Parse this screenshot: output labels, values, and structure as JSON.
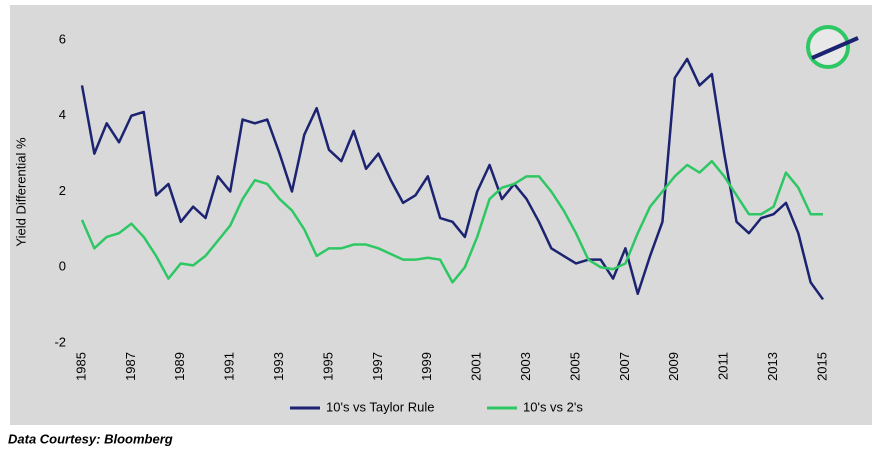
{
  "chart_data": {
    "type": "line",
    "y_label": "Yield Differential %",
    "source": "Data Courtesy: Bloomberg",
    "x": [
      1985,
      1985.5,
      1986,
      1986.5,
      1987,
      1987.5,
      1988,
      1988.5,
      1989,
      1989.5,
      1990,
      1990.5,
      1991,
      1991.5,
      1992,
      1992.5,
      1993,
      1993.5,
      1994,
      1994.5,
      1995,
      1995.5,
      1996,
      1996.5,
      1997,
      1997.5,
      1998,
      1998.5,
      1999,
      1999.5,
      2000,
      2000.5,
      2001,
      2001.5,
      2002,
      2002.5,
      2003,
      2003.5,
      2004,
      2004.5,
      2005,
      2005.5,
      2006,
      2006.5,
      2007,
      2007.5,
      2008,
      2008.5,
      2009,
      2009.5,
      2010,
      2010.5,
      2011,
      2011.5,
      2012,
      2012.5,
      2013,
      2013.5,
      2014,
      2014.5,
      2015
    ],
    "series": [
      {
        "name": "10's vs Taylor Rule",
        "color": "#1c2370",
        "values": [
          4.8,
          3.0,
          3.8,
          3.3,
          4.0,
          4.1,
          1.9,
          2.2,
          1.2,
          1.6,
          1.3,
          2.4,
          2.0,
          3.9,
          3.8,
          3.9,
          3.0,
          2.0,
          3.5,
          4.2,
          3.1,
          2.8,
          3.6,
          2.6,
          3.0,
          2.3,
          1.7,
          1.9,
          2.4,
          1.3,
          1.2,
          0.8,
          2.0,
          2.7,
          1.8,
          2.2,
          1.8,
          1.2,
          0.5,
          0.3,
          0.1,
          0.2,
          0.2,
          -0.3,
          0.5,
          -0.7,
          0.3,
          1.2,
          5.0,
          5.5,
          4.8,
          5.1,
          3.0,
          1.2,
          0.9,
          1.3,
          1.4,
          1.7,
          0.9,
          -0.4,
          -0.85
        ]
      },
      {
        "name": "10's vs 2's",
        "color": "#2dc763",
        "values": [
          1.25,
          0.5,
          0.8,
          0.9,
          1.15,
          0.8,
          0.3,
          -0.3,
          0.1,
          0.05,
          0.3,
          0.7,
          1.1,
          1.8,
          2.3,
          2.2,
          1.8,
          1.5,
          1.0,
          0.3,
          0.5,
          0.5,
          0.6,
          0.6,
          0.5,
          0.35,
          0.2,
          0.2,
          0.25,
          0.2,
          -0.4,
          0.0,
          0.8,
          1.8,
          2.1,
          2.2,
          2.4,
          2.4,
          2.0,
          1.5,
          0.9,
          0.2,
          0.0,
          -0.05,
          0.1,
          0.9,
          1.6,
          2.0,
          2.4,
          2.7,
          2.5,
          2.8,
          2.4,
          1.9,
          1.4,
          1.4,
          1.6,
          2.5,
          2.1,
          1.4,
          1.4
        ]
      }
    ],
    "xlim": [
      1985,
      2015
    ],
    "xticks": [
      1985,
      1987,
      1989,
      1991,
      1993,
      1995,
      1997,
      1999,
      2001,
      2003,
      2005,
      2007,
      2009,
      2011,
      2013,
      2015
    ],
    "ylim": [
      -2,
      6
    ],
    "yticks": [
      -2,
      0,
      2,
      4,
      6
    ],
    "grid": false
  }
}
